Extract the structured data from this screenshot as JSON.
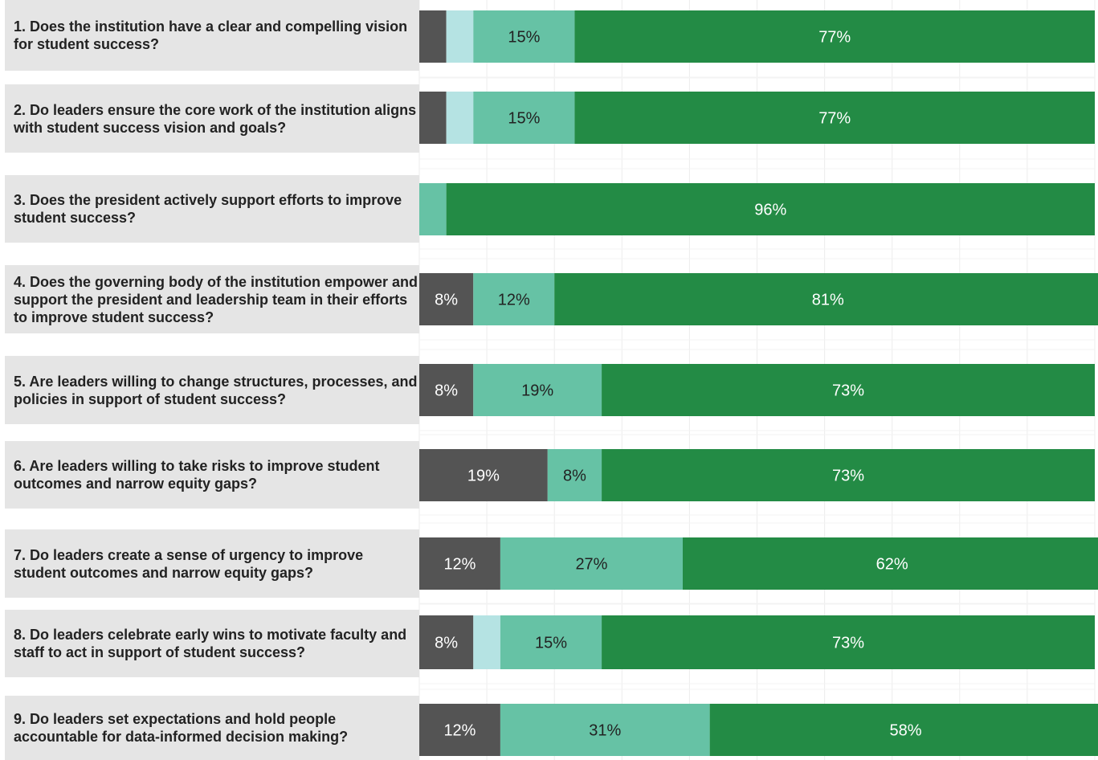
{
  "chart_data": {
    "type": "bar",
    "orientation": "horizontal",
    "stacked": true,
    "categories": [
      "1. Does the institution have a clear and compelling vision for student success?",
      "2. Do leaders ensure the core work of the institution aligns with student success vision and goals?",
      "3. Does the president actively support efforts to improve student success?",
      "4. Does the governing body of the institution empower and support the president and leadership team in their efforts to improve student success?",
      "5. Are leaders willing to change structures, processes, and policies in support of student success?",
      "6. Are leaders willing to take risks to improve student outcomes and narrow equity gaps?",
      "7. Do leaders create a sense of urgency to improve student outcomes and narrow equity gaps?",
      "8. Do leaders celebrate early wins to motivate faculty and staff to act in support of student success?",
      "9. Do leaders set expectations and hold people accountable for data-informed decision making?"
    ],
    "series": [
      {
        "color": "#545454",
        "values": [
          4,
          4,
          0,
          8,
          8,
          19,
          12,
          8,
          12
        ]
      },
      {
        "color": "#b5e3e3",
        "values": [
          4,
          4,
          0,
          0,
          0,
          0,
          0,
          4,
          0
        ]
      },
      {
        "color": "#66c2a5",
        "values": [
          15,
          15,
          4,
          12,
          19,
          8,
          27,
          15,
          31
        ]
      },
      {
        "color": "#238b45",
        "values": [
          77,
          77,
          96,
          81,
          73,
          73,
          62,
          73,
          58
        ]
      }
    ],
    "data_labels": [
      [
        "",
        "",
        "15%",
        "77%"
      ],
      [
        "",
        "",
        "15%",
        "77%"
      ],
      [
        "",
        "",
        "",
        "96%"
      ],
      [
        "8%",
        "",
        "12%",
        "81%"
      ],
      [
        "8%",
        "",
        "19%",
        "73%"
      ],
      [
        "19%",
        "",
        "8%",
        "73%"
      ],
      [
        "12%",
        "",
        "27%",
        "62%"
      ],
      [
        "8%",
        "",
        "15%",
        "73%"
      ],
      [
        "12%",
        "",
        "31%",
        "58%"
      ]
    ],
    "xlim": [
      0,
      100
    ],
    "grid": true,
    "legend": "none"
  },
  "colors": {
    "label_bg": "#e5e5e5",
    "grid": "#ececec",
    "text_dark": "#222222",
    "text_light": "#ffffff"
  }
}
